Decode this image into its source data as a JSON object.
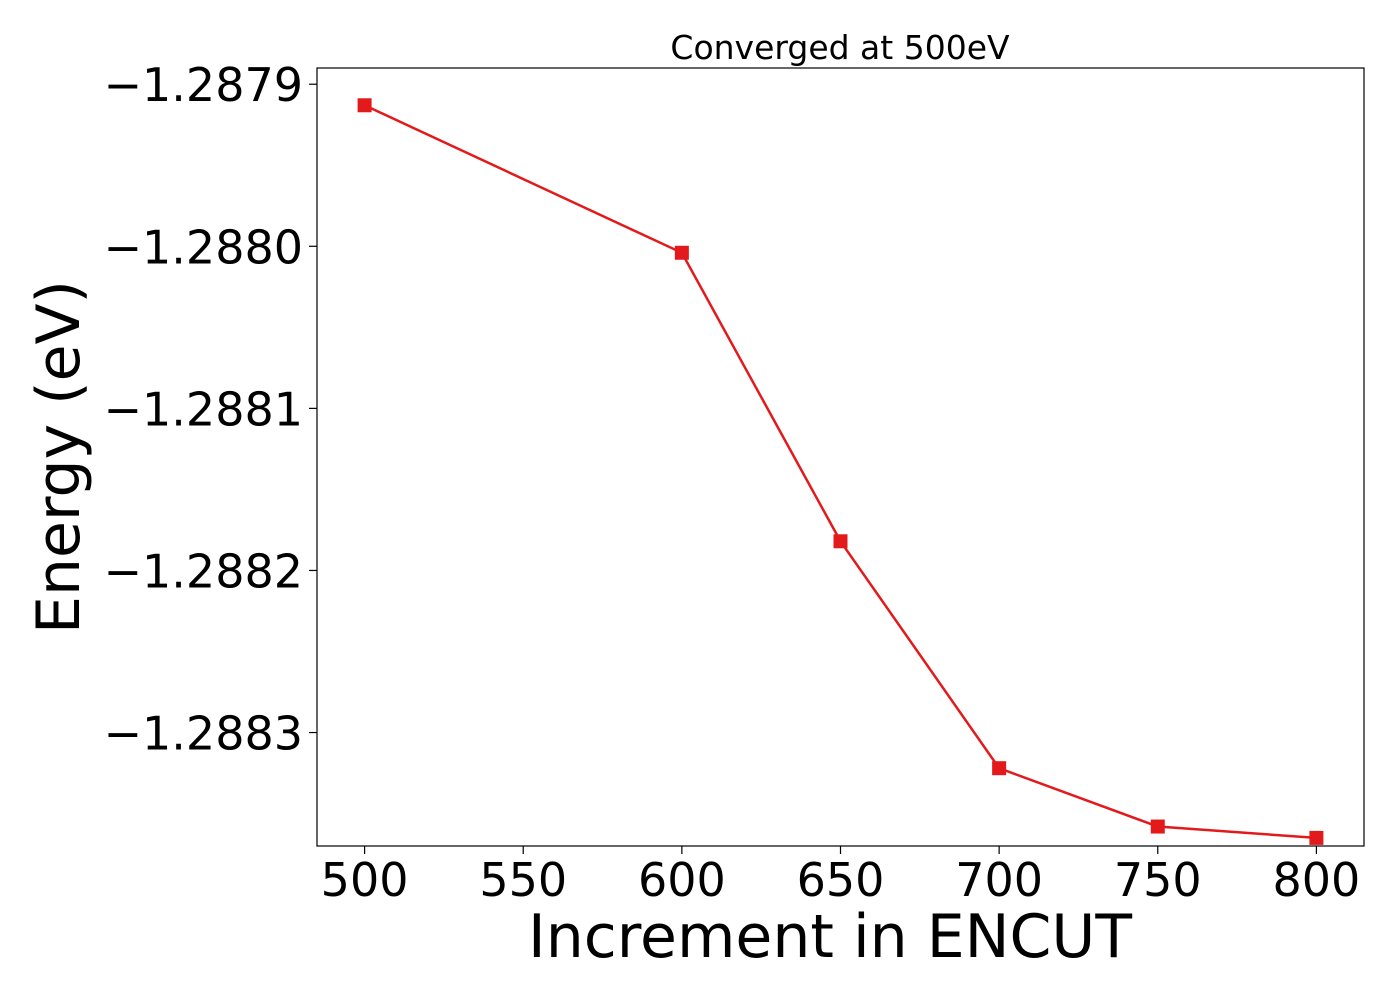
{
  "chart_data": {
    "type": "line",
    "title": "Converged at 500eV",
    "xlabel": "Increment in ENCUT",
    "ylabel": "Energy (eV)",
    "xlim": [
      485,
      815
    ],
    "ylim": [
      -1.28837,
      -1.28789
    ],
    "xticks": [
      500,
      550,
      600,
      650,
      700,
      750,
      800
    ],
    "xtick_labels": [
      "500",
      "550",
      "600",
      "650",
      "700",
      "750",
      "800"
    ],
    "yticks": [
      -1.2879,
      -1.288,
      -1.2881,
      -1.2882,
      -1.2883
    ],
    "ytick_labels": [
      "−1.2879",
      "−1.2880",
      "−1.2881",
      "−1.2882",
      "−1.2883"
    ],
    "grid": false,
    "series": [
      {
        "color": "#e31a1c",
        "marker": "square",
        "x": [
          500,
          600,
          650,
          700,
          750,
          800
        ],
        "y": [
          -1.287913,
          -1.288004,
          -1.288182,
          -1.288322,
          -1.288358,
          -1.288365
        ]
      }
    ]
  }
}
